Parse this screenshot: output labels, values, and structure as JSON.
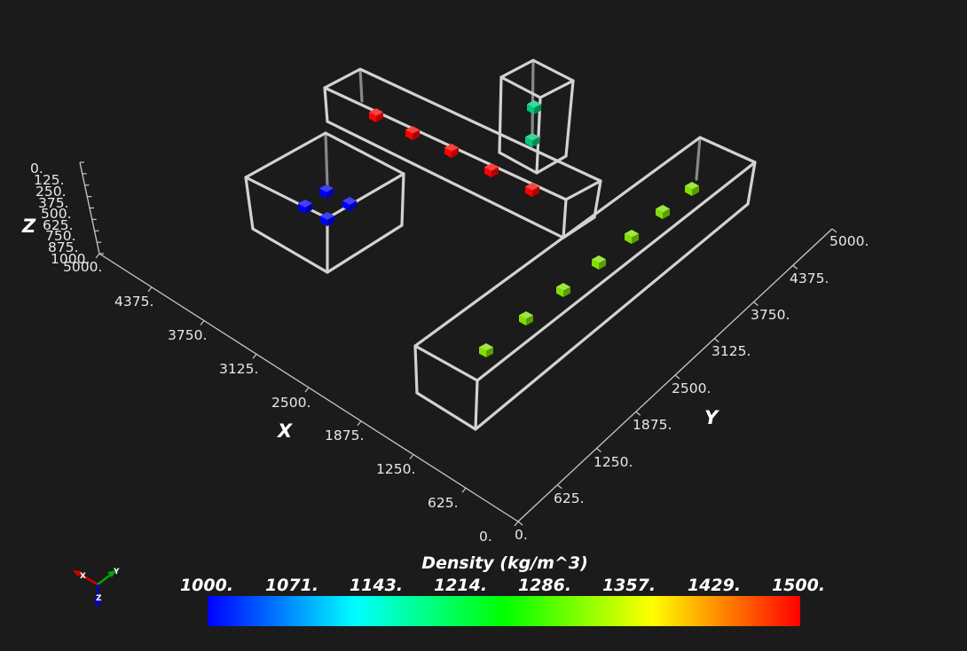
{
  "axes": {
    "x": {
      "title": "X",
      "ticks": [
        "0.",
        "625.",
        "1250.",
        "1875.",
        "2500.",
        "3125.",
        "3750.",
        "4375.",
        "5000."
      ]
    },
    "y": {
      "title": "Y",
      "ticks": [
        "0.",
        "625.",
        "1250.",
        "1875.",
        "2500.",
        "3125.",
        "3750.",
        "4375.",
        "5000."
      ]
    },
    "z": {
      "title": "Z",
      "ticks": [
        "0.",
        "125.",
        "250.",
        "375.",
        "500.",
        "625.",
        "750.",
        "875.",
        "1000."
      ]
    }
  },
  "colorbar": {
    "title": "Density (kg/m^3)",
    "labels": [
      "1000.",
      "1071.",
      "1143.",
      "1214.",
      "1286.",
      "1357.",
      "1429.",
      "1500."
    ],
    "range": [
      1000,
      1500
    ],
    "stops": [
      "#0000ff",
      "#00ffff",
      "#00ff00",
      "#ffff00",
      "#ff0000"
    ]
  },
  "orientation_triad": {
    "x": "X",
    "y": "Y",
    "z": "Z"
  },
  "colors": {
    "background": "#1b1b1b",
    "box_outline": "#d2d2d2",
    "axis_line": "#c8c8c8"
  }
}
